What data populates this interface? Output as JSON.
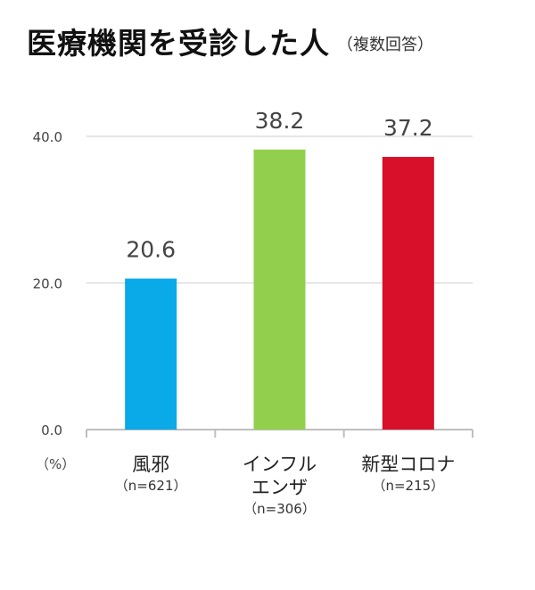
{
  "title": "医療機関を受診した人",
  "subtitle": "（複数回答）",
  "unit_label": "（%）",
  "chart_data": {
    "type": "bar",
    "title": "医療機関を受診した人",
    "subtitle": "（複数回答）",
    "categories": [
      "風邪",
      "インフルエンザ",
      "新型コロナ"
    ],
    "category_lines": [
      [
        "風邪"
      ],
      [
        "インフル",
        "エンザ"
      ],
      [
        "新型コロナ"
      ]
    ],
    "sample_sizes": [
      "（n=621）",
      "（n=306）",
      "（n=215）"
    ],
    "values": [
      20.6,
      38.2,
      37.2
    ],
    "value_labels": [
      "20.6",
      "38.2",
      "37.2"
    ],
    "colors": [
      "#0aa9e8",
      "#92cf4c",
      "#d8102a"
    ],
    "yticks": [
      "0.0",
      "20.0",
      "40.0"
    ],
    "ylim": [
      0,
      40
    ],
    "grid": true,
    "legend": "none",
    "ylabel": "（%）"
  }
}
